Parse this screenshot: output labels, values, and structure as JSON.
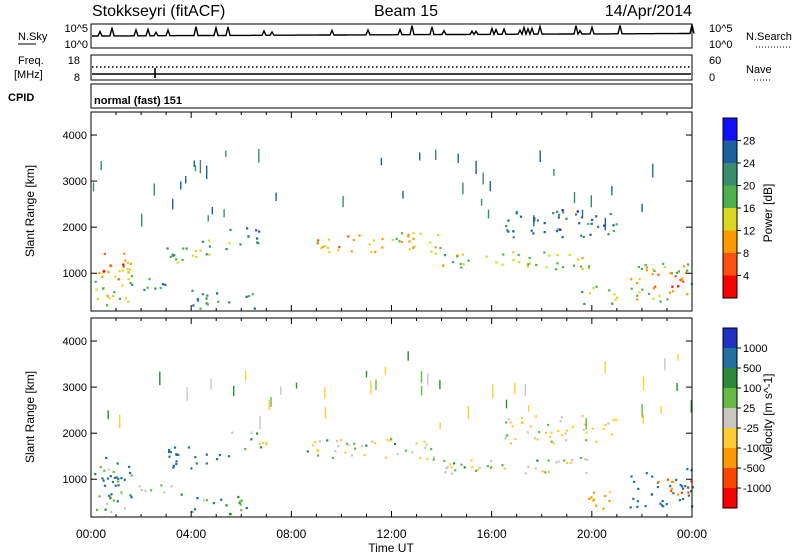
{
  "header": {
    "station": "Stokkseyri (fitACF)",
    "beam": "Beam 15",
    "date": "14/Apr/2014"
  },
  "top_panels": {
    "nsky_label": "N.Sky",
    "nsky_ticks": [
      "10^5",
      "10^0"
    ],
    "nsearch_label": "N.Search",
    "nsearch_ticks": [
      "10^5",
      "10^0"
    ],
    "freq_label_1": "Freq.",
    "freq_label_2": "[MHz]",
    "freq_ticks": [
      "18",
      "8"
    ],
    "nave_label": "Nave",
    "nave_ticks": [
      "60",
      "0"
    ],
    "cpid_label": "CPID",
    "cpid_text": "normal (fast) 151"
  },
  "chart_data": [
    {
      "type": "heatmap",
      "title": "",
      "xlabel": "Time UT",
      "ylabel": "Slant Range [km]",
      "x_ticks": [
        "00:00",
        "04:00",
        "08:00",
        "12:00",
        "16:00",
        "20:00",
        "00:00"
      ],
      "y_ticks": [
        "1000",
        "2000",
        "3000",
        "4000"
      ],
      "xlim_hours": [
        0,
        24
      ],
      "ylim_km": [
        180,
        4500
      ],
      "colorbar": {
        "label": "Power [dB]",
        "ticks": [
          "28",
          "24",
          "20",
          "16",
          "12",
          "8",
          "4"
        ],
        "range": [
          0,
          32
        ]
      },
      "colors": [
        "#1010ff",
        "#1e5fa0",
        "#3a8c6e",
        "#4cb04c",
        "#d8d820",
        "#ff9900",
        "#ff5010",
        "#ff0000"
      ]
    },
    {
      "type": "heatmap",
      "title": "",
      "xlabel": "Time UT",
      "ylabel": "Slant Range [km]",
      "x_ticks": [
        "00:00",
        "04:00",
        "08:00",
        "12:00",
        "16:00",
        "20:00",
        "00:00"
      ],
      "y_ticks": [
        "1000",
        "2000",
        "3000",
        "4000"
      ],
      "xlim_hours": [
        0,
        24
      ],
      "ylim_km": [
        180,
        4500
      ],
      "colorbar": {
        "label": "Velocity [m s^-1]",
        "ticks": [
          "1000",
          "500",
          "100",
          "25",
          "-25",
          "-100",
          "-500",
          "-1000"
        ]
      },
      "colors": [
        "#2030c0",
        "#2070a0",
        "#2a8a3a",
        "#66bb44",
        "#c8c8c0",
        "#ffcc33",
        "#ff9900",
        "#ff4400",
        "#ff0000"
      ]
    }
  ],
  "bands": [
    {
      "t0": 0.1,
      "t1": 1.6,
      "r0": 300,
      "r1": 1300,
      "pw": 18,
      "vel": 60
    },
    {
      "t0": 0.3,
      "t1": 1.6,
      "r0": 800,
      "r1": 1500,
      "pw": 24,
      "vel": 120
    },
    {
      "t0": 1.6,
      "t1": 3.6,
      "r0": 650,
      "r1": 900,
      "pw": 12,
      "vel": 40
    },
    {
      "t0": 3.0,
      "t1": 5.5,
      "r0": 1250,
      "r1": 1750,
      "pw": 14,
      "vel": 150
    },
    {
      "t0": 5.5,
      "t1": 7.0,
      "r0": 1650,
      "r1": 2050,
      "pw": 10,
      "vel": 10
    },
    {
      "t0": 4.0,
      "t1": 6.5,
      "r0": 250,
      "r1": 650,
      "pw": 10,
      "vel": 80
    },
    {
      "t0": 8.5,
      "t1": 14.0,
      "r0": 1450,
      "r1": 1900,
      "pw": 20,
      "vel": 0
    },
    {
      "t0": 14.0,
      "t1": 20.0,
      "r0": 1100,
      "r1": 1500,
      "pw": 16,
      "vel": 5
    },
    {
      "t0": 16.5,
      "t1": 21.0,
      "r0": 1800,
      "r1": 2400,
      "pw": 8,
      "vel": -20
    },
    {
      "t0": 19.5,
      "t1": 21.0,
      "r0": 350,
      "r1": 750,
      "pw": 14,
      "vel": -150
    },
    {
      "t0": 21.5,
      "t1": 24.0,
      "r0": 400,
      "r1": 1250,
      "pw": 18,
      "vel": 200
    },
    {
      "t0": 22.3,
      "t1": 24.0,
      "r0": 650,
      "r1": 1050,
      "pw": 24,
      "vel": -300
    }
  ]
}
